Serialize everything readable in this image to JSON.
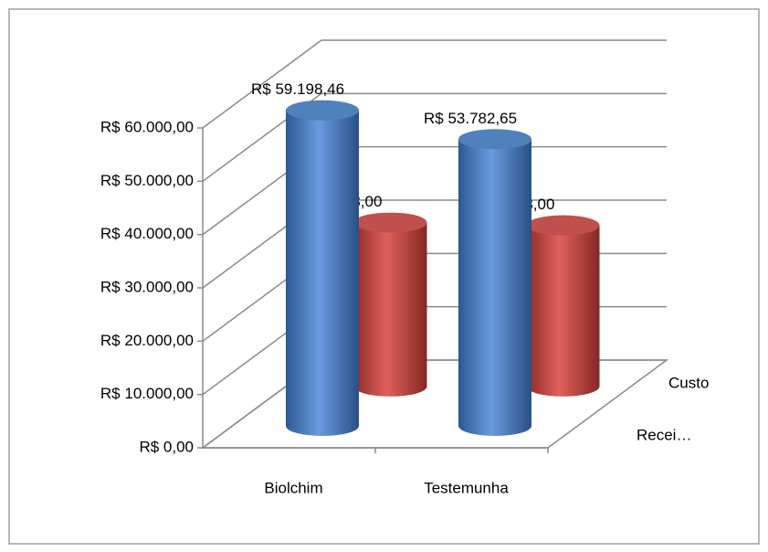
{
  "chart_data": {
    "type": "bar3d",
    "categories": [
      "Biolchim",
      "Testemunha"
    ],
    "series": [
      {
        "name": "Recei…",
        "color": "#4f81bd",
        "values": [
          59198.46,
          53782.65
        ],
        "value_labels": [
          "R$ 59.198,46",
          "R$ 53.782,65"
        ]
      },
      {
        "name": "Custo",
        "color": "#c0504d",
        "values": [
          30723,
          30223
        ],
        "value_labels": [
          "30723,00",
          "30223,00"
        ]
      }
    ],
    "ylim": [
      0,
      60000
    ],
    "yticks": [
      {
        "value": 0,
        "label": "R$ 0,00"
      },
      {
        "value": 10000,
        "label": "R$ 10.000,00"
      },
      {
        "value": 20000,
        "label": "R$ 20.000,00"
      },
      {
        "value": 30000,
        "label": "R$ 30.000,00"
      },
      {
        "value": 40000,
        "label": "R$ 40.000,00"
      },
      {
        "value": 50000,
        "label": "R$ 50.000,00"
      },
      {
        "value": 60000,
        "label": "R$ 60.000,00"
      }
    ],
    "grid": true
  }
}
